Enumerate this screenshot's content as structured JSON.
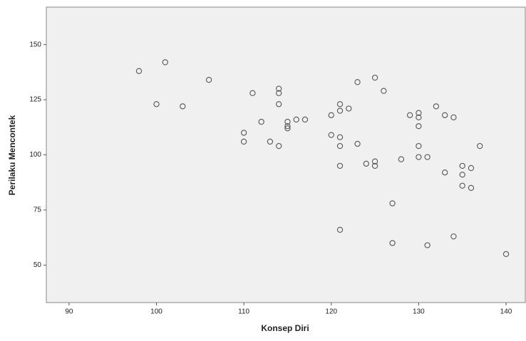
{
  "chart_data": {
    "type": "scatter",
    "x_label": "Konsep Diri",
    "y_label": "Perilaku Mencontek",
    "x": [
      98,
      101,
      100,
      103,
      106,
      111,
      114,
      114,
      114,
      112,
      110,
      110,
      113,
      114,
      115,
      115,
      115,
      116,
      117,
      123,
      125,
      126,
      121,
      121,
      122,
      120,
      120,
      121,
      121,
      123,
      124,
      125,
      125,
      121,
      128,
      129,
      130,
      130,
      130,
      132,
      133,
      134,
      130,
      130,
      131,
      137,
      135,
      136,
      135,
      133,
      135,
      136,
      127,
      121,
      127,
      131,
      134,
      140
    ],
    "y": [
      138,
      142,
      123,
      122,
      134,
      128,
      130,
      128,
      123,
      115,
      110,
      106,
      106,
      104,
      115,
      113,
      112,
      116,
      116,
      133,
      135,
      129,
      123,
      120,
      121,
      118,
      109,
      108,
      104,
      105,
      96,
      97,
      95,
      95,
      98,
      118,
      119,
      117,
      113,
      122,
      118,
      117,
      104,
      99,
      99,
      104,
      95,
      94,
      91,
      92,
      86,
      85,
      78,
      66,
      60,
      59,
      63,
      55
    ],
    "xlim": [
      87.4,
      142.2
    ],
    "ylim": [
      33,
      167
    ],
    "xticks": [
      90,
      100,
      110,
      120,
      130,
      140
    ],
    "yticks": [
      50,
      75,
      100,
      125,
      150
    ],
    "color": "#555555",
    "background": "#f0f0f0"
  }
}
